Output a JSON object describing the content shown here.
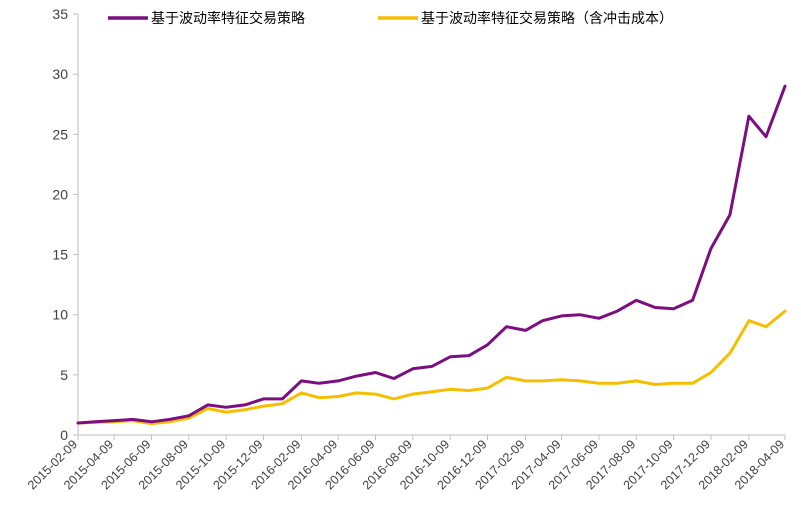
{
  "chart_data": {
    "type": "line",
    "title": "",
    "xlabel": "",
    "ylabel": "",
    "ylim": [
      0,
      35
    ],
    "y_ticks": [
      0,
      5,
      10,
      15,
      20,
      25,
      30,
      35
    ],
    "grid": false,
    "legend_position": "top",
    "x_tick_labels": [
      "2015-02-09",
      "2015-04-09",
      "2015-06-09",
      "2015-08-09",
      "2015-10-09",
      "2015-12-09",
      "2016-02-09",
      "2016-04-09",
      "2016-06-09",
      "2016-08-09",
      "2016-10-09",
      "2016-12-09",
      "2017-02-09",
      "2017-04-09",
      "2017-06-09",
      "2017-08-09",
      "2017-10-09",
      "2017-12-09",
      "2018-02-09",
      "2018-04-09"
    ],
    "x": [
      "2015-02-09",
      "2015-03-09",
      "2015-04-09",
      "2015-05-09",
      "2015-06-09",
      "2015-07-09",
      "2015-08-09",
      "2015-09-09",
      "2015-10-09",
      "2015-11-09",
      "2015-12-09",
      "2016-01-09",
      "2016-02-09",
      "2016-03-09",
      "2016-04-09",
      "2016-05-09",
      "2016-06-09",
      "2016-07-09",
      "2016-08-09",
      "2016-09-09",
      "2016-10-09",
      "2016-11-09",
      "2016-12-09",
      "2017-01-09",
      "2017-02-09",
      "2017-03-09",
      "2017-04-09",
      "2017-05-09",
      "2017-06-09",
      "2017-07-09",
      "2017-08-09",
      "2017-09-09",
      "2017-10-09",
      "2017-11-09",
      "2017-12-09",
      "2018-01-09",
      "2018-02-09",
      "2018-03-09",
      "2018-04-09"
    ],
    "series": [
      {
        "name": "基于波动率特征交易策略",
        "color": "#7B0F7F",
        "values": [
          1.0,
          1.1,
          1.2,
          1.3,
          1.1,
          1.3,
          1.6,
          2.5,
          2.3,
          2.5,
          3.0,
          3.0,
          4.5,
          4.3,
          4.5,
          4.9,
          5.2,
          4.7,
          5.5,
          5.7,
          6.5,
          6.6,
          7.5,
          9.0,
          8.7,
          9.5,
          9.9,
          10.0,
          9.7,
          10.3,
          11.2,
          10.6,
          10.5,
          11.2,
          15.5,
          18.3,
          26.5,
          24.8,
          29.0
        ]
      },
      {
        "name": "基于波动率特征交易策略（含冲击成本）",
        "color": "#F5BE00",
        "values": [
          1.0,
          1.05,
          1.1,
          1.2,
          0.95,
          1.1,
          1.4,
          2.2,
          1.9,
          2.1,
          2.4,
          2.6,
          3.5,
          3.1,
          3.2,
          3.5,
          3.4,
          3.0,
          3.4,
          3.6,
          3.8,
          3.7,
          3.9,
          4.8,
          4.5,
          4.5,
          4.6,
          4.5,
          4.3,
          4.3,
          4.5,
          4.2,
          4.3,
          4.3,
          5.2,
          6.8,
          9.5,
          9.0,
          10.3
        ]
      }
    ]
  }
}
